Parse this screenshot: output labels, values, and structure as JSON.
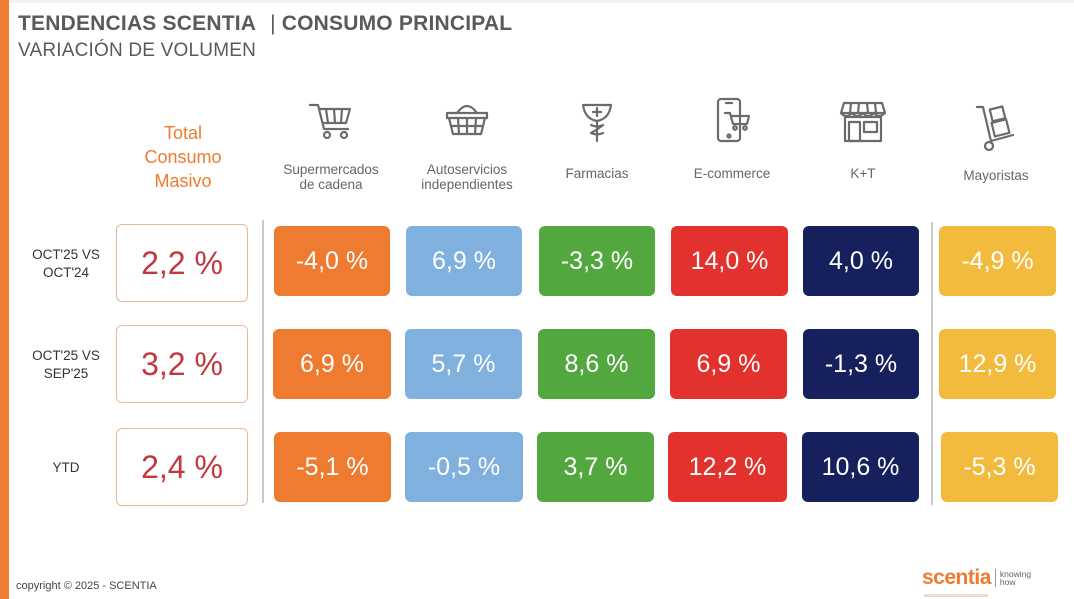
{
  "header": {
    "title_left": "TENDENCIAS SCENTIA",
    "title_sep": "|",
    "title_right": "CONSUMO PRINCIPAL",
    "subtitle": "VARIACIÓN DE VOLUMEN"
  },
  "total_header": "Total\nConsumo\nMasivo",
  "channels": [
    {
      "label": "Supermercados\nde cadena",
      "icon": "shopping-cart-icon",
      "color": "#ee7b30"
    },
    {
      "label": "Autoservicios\nindependientes",
      "icon": "shopping-basket-icon",
      "color": "#7fb0de"
    },
    {
      "label": "Farmacias",
      "icon": "pharmacy-icon",
      "color": "#52a83f"
    },
    {
      "label": "E-commerce",
      "icon": "mobile-cart-icon",
      "color": "#e3312d"
    },
    {
      "label": "K+T",
      "icon": "storefront-icon",
      "color": "#15205d"
    },
    {
      "label": "Mayoristas",
      "icon": "hand-truck-icon",
      "color": "#f2bb3e"
    }
  ],
  "rows": [
    {
      "label": "OCT'25 VS\nOCT'24",
      "total": "2,2 %",
      "values": [
        "-4,0 %",
        "6,9 %",
        "-3,3 %",
        "14,0 %",
        "4,0 %",
        "-4,9 %"
      ]
    },
    {
      "label": "OCT'25 VS\nSEP'25",
      "total": "3,2 %",
      "values": [
        "6,9 %",
        "5,7 %",
        "8,6 %",
        "6,9 %",
        "-1,3 %",
        "12,9 %"
      ]
    },
    {
      "label": "YTD",
      "total": "2,4 %",
      "values": [
        "-5,1 %",
        "-0,5 %",
        "3,7 %",
        "12,2 %",
        "10,6 %",
        "-5,3 %"
      ]
    }
  ],
  "colors": {
    "accent": "#ee7b30",
    "total_value": "#c2383e"
  },
  "footer": {
    "copyright": "copyright © 2025 - SCENTIA",
    "logo_word": "scentia",
    "logo_tagline": "knowing\nhow"
  }
}
